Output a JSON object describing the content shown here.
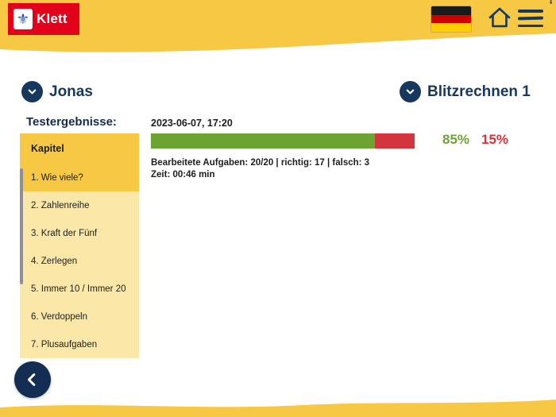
{
  "header": {
    "logo_text": "Klett",
    "corner_mark": "‘"
  },
  "selectors": {
    "student": {
      "label": "Jonas"
    },
    "program": {
      "label": "Blitzrechnen 1"
    }
  },
  "main": {
    "title": "Testergebnisse:",
    "result": {
      "datetime": "2023-06-07, 17:20",
      "percent_correct_label": "85%",
      "percent_wrong_label": "15%",
      "correct_value": 85,
      "wrong_value": 15,
      "details_line1": "Bearbeitete Aufgaben: 20/20 | richtig: 17 | falsch: 3",
      "details_line2": "Zeit: 00:46 min"
    }
  },
  "sidebar": {
    "header": "Kapitel",
    "items": [
      {
        "label": "1. Wie viele?",
        "selected": true
      },
      {
        "label": "2. Zahlenreihe",
        "selected": false
      },
      {
        "label": "3. Kraft der Fünf",
        "selected": false
      },
      {
        "label": "4. Zerlegen",
        "selected": false
      },
      {
        "label": "5. Immer 10 / Immer 20",
        "selected": false
      },
      {
        "label": "6. Verdoppeln",
        "selected": false
      },
      {
        "label": "7. Plusaufgaben",
        "selected": false
      }
    ]
  },
  "colors": {
    "yellow": "#F7C843",
    "light_yellow": "#FBE8A9",
    "navy": "#16375E",
    "green": "#6CA431",
    "red": "#D2353C",
    "logo_red": "#E2001A"
  }
}
